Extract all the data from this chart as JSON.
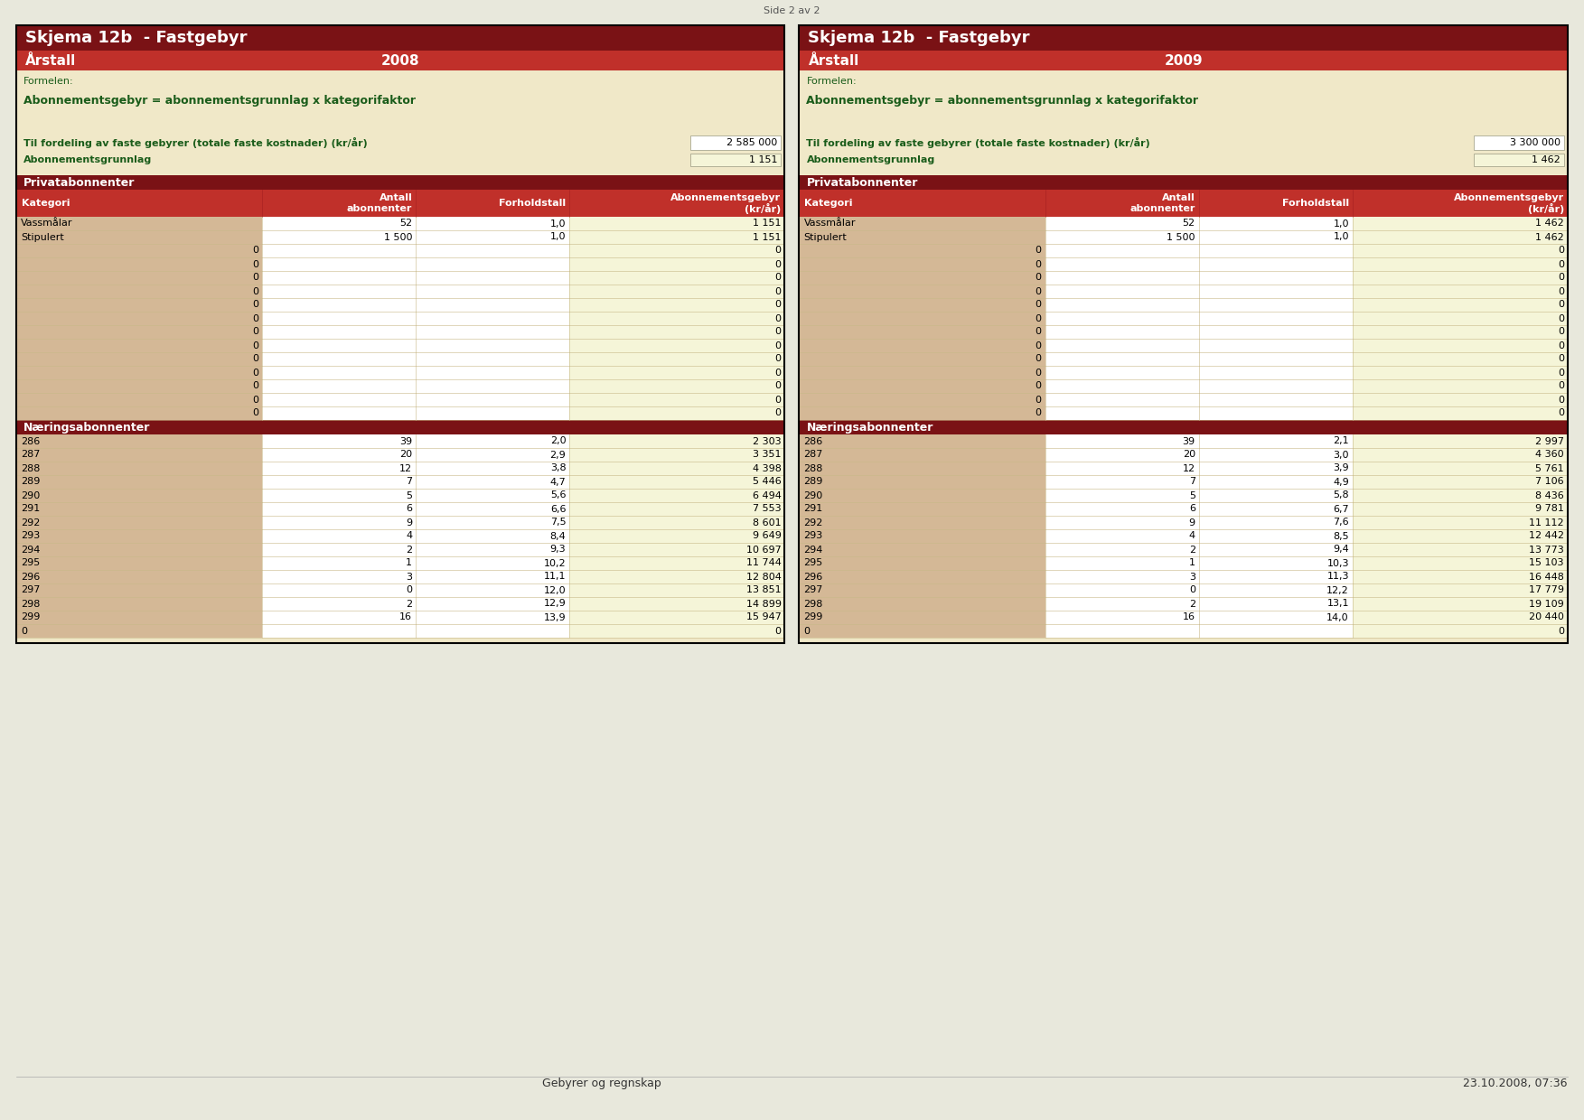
{
  "page_label": "Side 2 av 2",
  "footer_left": "Gebyrer og regnskap",
  "footer_right": "23.10.2008, 07:36",
  "tables": [
    {
      "title": "Skjema 12b  - Fastgebyr",
      "year_label": "Årstall",
      "year": "2008",
      "formula_line1": "Formelen:",
      "formula_line2": "Abonnementsgebyr = abonnementsgrunnlag x kategorifaktor",
      "total_label": "Til fordeling av faste gebyrer (totale faste kostnader) (kr/år)",
      "total_value": "2 585 000",
      "grunnlag_label": "Abonnementsgrunnlag",
      "grunnlag_value": "1 151",
      "privat_header": "Privatabonnenter",
      "col_headers": [
        "Kategori",
        "Antall\nabonnenter",
        "Forholdstall",
        "Abonnementsgebyr\n(kr/år)"
      ],
      "privat_rows": [
        [
          "Vassmålar",
          "52",
          "1,0",
          "1 151"
        ],
        [
          "Stipulert",
          "1 500",
          "1,0",
          "1 151"
        ],
        [
          "0",
          "",
          "",
          "0"
        ],
        [
          "0",
          "",
          "",
          "0"
        ],
        [
          "0",
          "",
          "",
          "0"
        ],
        [
          "0",
          "",
          "",
          "0"
        ],
        [
          "0",
          "",
          "",
          "0"
        ],
        [
          "0",
          "",
          "",
          "0"
        ],
        [
          "0",
          "",
          "",
          "0"
        ],
        [
          "0",
          "",
          "",
          "0"
        ],
        [
          "0",
          "",
          "",
          "0"
        ],
        [
          "0",
          "",
          "",
          "0"
        ],
        [
          "0",
          "",
          "",
          "0"
        ],
        [
          "0",
          "",
          "",
          "0"
        ],
        [
          "0",
          "",
          "",
          "0"
        ]
      ],
      "naering_header": "Næringsabonnenter",
      "naering_rows": [
        [
          "286",
          "39",
          "2,0",
          "2 303"
        ],
        [
          "287",
          "20",
          "2,9",
          "3 351"
        ],
        [
          "288",
          "12",
          "3,8",
          "4 398"
        ],
        [
          "289",
          "7",
          "4,7",
          "5 446"
        ],
        [
          "290",
          "5",
          "5,6",
          "6 494"
        ],
        [
          "291",
          "6",
          "6,6",
          "7 553"
        ],
        [
          "292",
          "9",
          "7,5",
          "8 601"
        ],
        [
          "293",
          "4",
          "8,4",
          "9 649"
        ],
        [
          "294",
          "2",
          "9,3",
          "10 697"
        ],
        [
          "295",
          "1",
          "10,2",
          "11 744"
        ],
        [
          "296",
          "3",
          "11,1",
          "12 804"
        ],
        [
          "297",
          "0",
          "12,0",
          "13 851"
        ],
        [
          "298",
          "2",
          "12,9",
          "14 899"
        ],
        [
          "299",
          "16",
          "13,9",
          "15 947"
        ],
        [
          "0",
          "",
          "",
          "0"
        ]
      ]
    },
    {
      "title": "Skjema 12b  - Fastgebyr",
      "year_label": "Årstall",
      "year": "2009",
      "formula_line1": "Formelen:",
      "formula_line2": "Abonnementsgebyr = abonnementsgrunnlag x kategorifaktor",
      "total_label": "Til fordeling av faste gebyrer (totale faste kostnader) (kr/år)",
      "total_value": "3 300 000",
      "grunnlag_label": "Abonnementsgrunnlag",
      "grunnlag_value": "1 462",
      "privat_header": "Privatabonnenter",
      "col_headers": [
        "Kategori",
        "Antall\nabonnenter",
        "Forholdstall",
        "Abonnementsgebyr\n(kr/år)"
      ],
      "privat_rows": [
        [
          "Vassmålar",
          "52",
          "1,0",
          "1 462"
        ],
        [
          "Stipulert",
          "1 500",
          "1,0",
          "1 462"
        ],
        [
          "0",
          "",
          "",
          "0"
        ],
        [
          "0",
          "",
          "",
          "0"
        ],
        [
          "0",
          "",
          "",
          "0"
        ],
        [
          "0",
          "",
          "",
          "0"
        ],
        [
          "0",
          "",
          "",
          "0"
        ],
        [
          "0",
          "",
          "",
          "0"
        ],
        [
          "0",
          "",
          "",
          "0"
        ],
        [
          "0",
          "",
          "",
          "0"
        ],
        [
          "0",
          "",
          "",
          "0"
        ],
        [
          "0",
          "",
          "",
          "0"
        ],
        [
          "0",
          "",
          "",
          "0"
        ],
        [
          "0",
          "",
          "",
          "0"
        ],
        [
          "0",
          "",
          "",
          "0"
        ]
      ],
      "naering_header": "Næringsabonnenter",
      "naering_rows": [
        [
          "286",
          "39",
          "2,1",
          "2 997"
        ],
        [
          "287",
          "20",
          "3,0",
          "4 360"
        ],
        [
          "288",
          "12",
          "3,9",
          "5 761"
        ],
        [
          "289",
          "7",
          "4,9",
          "7 106"
        ],
        [
          "290",
          "5",
          "5,8",
          "8 436"
        ],
        [
          "291",
          "6",
          "6,7",
          "9 781"
        ],
        [
          "292",
          "9",
          "7,6",
          "11 112"
        ],
        [
          "293",
          "4",
          "8,5",
          "12 442"
        ],
        [
          "294",
          "2",
          "9,4",
          "13 773"
        ],
        [
          "295",
          "1",
          "10,3",
          "15 103"
        ],
        [
          "296",
          "3",
          "11,3",
          "16 448"
        ],
        [
          "297",
          "0",
          "12,2",
          "17 779"
        ],
        [
          "298",
          "2",
          "13,1",
          "19 109"
        ],
        [
          "299",
          "16",
          "14,0",
          "20 440"
        ],
        [
          "0",
          "",
          "",
          "0"
        ]
      ]
    }
  ]
}
